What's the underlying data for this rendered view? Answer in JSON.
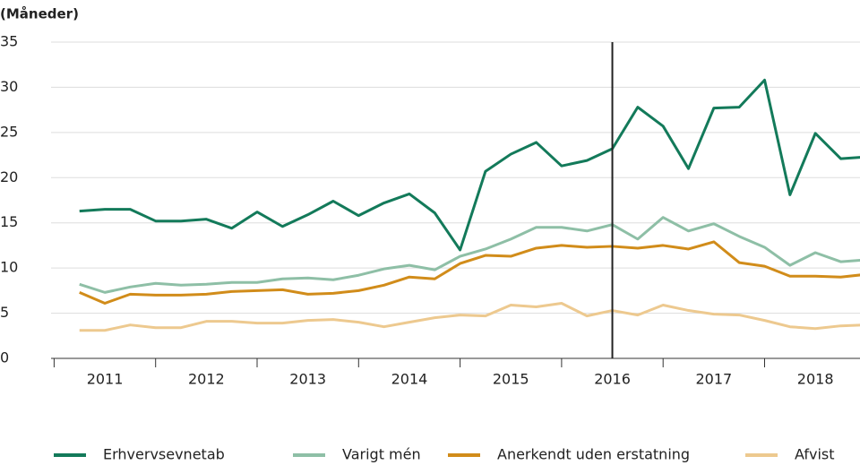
{
  "chart_data": {
    "type": "line",
    "title": "(Måneder)",
    "x": [
      2011.25,
      2011.5,
      2011.75,
      2012.0,
      2012.25,
      2012.5,
      2012.75,
      2013.0,
      2013.25,
      2013.5,
      2013.75,
      2014.0,
      2014.25,
      2014.5,
      2014.75,
      2015.0,
      2015.25,
      2015.5,
      2015.75,
      2016.0,
      2016.25,
      2016.5,
      2016.75,
      2017.0,
      2017.25,
      2017.5,
      2017.75,
      2018.0,
      2018.25,
      2018.5,
      2018.75,
      2019.0
    ],
    "series": [
      {
        "name": "Erhvervsevnetab",
        "color": "#137a5a",
        "values": [
          16.3,
          16.5,
          16.5,
          15.2,
          15.2,
          15.4,
          14.4,
          16.2,
          14.6,
          15.9,
          17.4,
          15.8,
          17.2,
          18.2,
          16.1,
          12.0,
          20.7,
          22.6,
          23.9,
          21.3,
          21.9,
          23.2,
          27.8,
          25.7,
          21.0,
          27.7,
          27.8,
          30.8,
          18.1,
          24.9,
          22.1,
          22.3
        ]
      },
      {
        "name": "Varigt mén",
        "color": "#8ebfa6",
        "values": [
          8.2,
          7.3,
          7.9,
          8.3,
          8.1,
          8.2,
          8.4,
          8.4,
          8.8,
          8.9,
          8.7,
          9.2,
          9.9,
          10.3,
          9.8,
          11.3,
          12.1,
          13.2,
          14.5,
          14.5,
          14.1,
          14.8,
          13.2,
          15.6,
          14.1,
          14.9,
          13.5,
          12.3,
          10.3,
          11.7,
          10.7,
          10.9
        ]
      },
      {
        "name": "Anerkendt uden erstatning",
        "color": "#d18c1a",
        "values": [
          7.3,
          6.1,
          7.1,
          7.0,
          7.0,
          7.1,
          7.4,
          7.5,
          7.6,
          7.1,
          7.2,
          7.5,
          8.1,
          9.0,
          8.8,
          10.5,
          11.4,
          11.3,
          12.2,
          12.5,
          12.3,
          12.4,
          12.2,
          12.5,
          12.1,
          12.9,
          10.6,
          10.2,
          9.1,
          9.1,
          9.0,
          9.3
        ]
      },
      {
        "name": "Afvist",
        "color": "#edc98f",
        "values": [
          3.1,
          3.1,
          3.7,
          3.4,
          3.4,
          4.1,
          4.1,
          3.9,
          3.9,
          4.2,
          4.3,
          4.0,
          3.5,
          4.0,
          4.5,
          4.8,
          4.7,
          5.9,
          5.7,
          6.1,
          4.7,
          5.3,
          4.8,
          5.9,
          5.3,
          4.9,
          4.8,
          4.2,
          3.5,
          3.3,
          3.6,
          3.7
        ]
      }
    ],
    "xlim": [
      2010.97,
      2018.94
    ],
    "xticks": [
      {
        "value": 2011.5,
        "label": "2011"
      },
      {
        "value": 2012.5,
        "label": "2012"
      },
      {
        "value": 2013.5,
        "label": "2013"
      },
      {
        "value": 2014.5,
        "label": "2014"
      },
      {
        "value": 2015.5,
        "label": "2015"
      },
      {
        "value": 2016.5,
        "label": "2016"
      },
      {
        "value": 2017.5,
        "label": "2017"
      },
      {
        "value": 2018.5,
        "label": "2018"
      }
    ],
    "ylim": [
      0,
      35
    ],
    "yticks": [
      0,
      5,
      10,
      15,
      20,
      25,
      30,
      35
    ],
    "grid": true,
    "marker_x": 2016.5,
    "legend": "bottom"
  }
}
